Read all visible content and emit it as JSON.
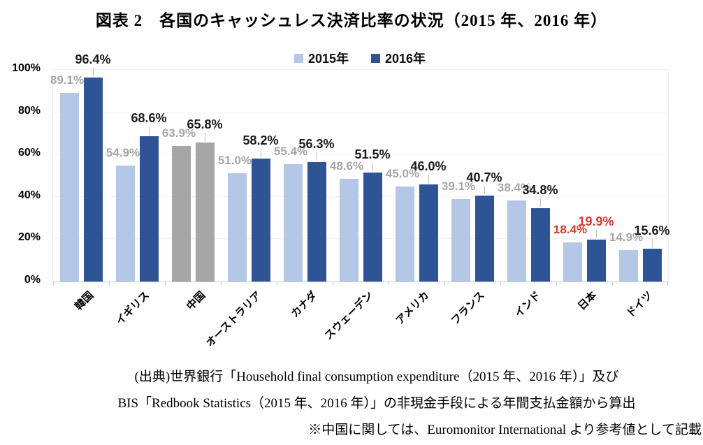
{
  "title": "図表 2　各国のキャッシュレス決済比率の状況（2015 年、2016 年）",
  "legend": [
    {
      "label": "2015年",
      "color": "#b4c7e7"
    },
    {
      "label": "2016年",
      "color": "#2f5496"
    }
  ],
  "chart_data": {
    "type": "bar",
    "title": "図表 2　各国のキャッシュレス決済比率の状況（2015 年、2016 年）",
    "categories": [
      "韓国",
      "イギリス",
      "中国",
      "オーストラリア",
      "カナダ",
      "スウェーデン",
      "アメリカ",
      "フランス",
      "インド",
      "日本",
      "ドイツ"
    ],
    "series": [
      {
        "name": "2015年",
        "values": [
          89.1,
          54.9,
          63.9,
          51.0,
          55.4,
          48.6,
          45.0,
          39.1,
          38.4,
          18.4,
          14.9
        ]
      },
      {
        "name": "2016年",
        "values": [
          96.4,
          68.6,
          65.8,
          58.2,
          56.3,
          51.5,
          46.0,
          40.7,
          34.8,
          19.9,
          15.6
        ]
      }
    ],
    "xlabel": "",
    "ylabel": "",
    "ylim": [
      0,
      100
    ],
    "yticks": [
      0,
      20,
      40,
      60,
      80,
      100
    ],
    "ytick_labels": [
      "0%",
      "20%",
      "40%",
      "60%",
      "80%",
      "100%"
    ],
    "grid": true,
    "legend_position": "top",
    "colors": {
      "series_2015": "#b4c7e7",
      "series_2016": "#2f5496"
    },
    "china_index": 2,
    "china_bar_color": "#a6a6a6",
    "japan_index": 9,
    "japan_label_color": "#d9382c",
    "label_color_2015": "#a6a6a6",
    "label_color_2016": "#1a1a1a",
    "value_suffix": "%"
  },
  "footer": {
    "line1": "(出典)世界銀行「Household final consumption expenditure（2015 年、2016 年）」及び",
    "line2": "BIS「Redbook Statistics（2015 年、2016 年）」の非現金手段による年間支払金額から算出",
    "line3": "※中国に関しては、Euromonitor International より参考値として記載"
  }
}
